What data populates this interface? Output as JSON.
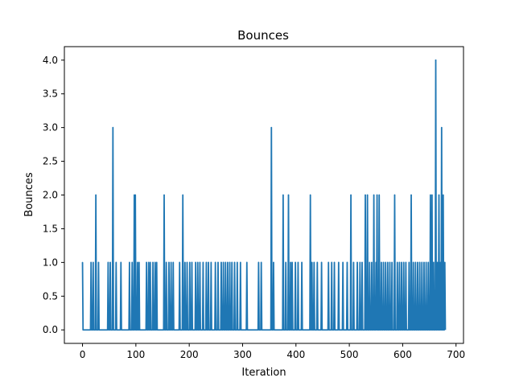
{
  "chart_data": {
    "type": "line",
    "title": "Bounces",
    "xlabel": "Iteration",
    "ylabel": "Bounces",
    "xlim": [
      -34,
      714
    ],
    "ylim": [
      -0.2,
      4.2
    ],
    "xticks": [
      0,
      100,
      200,
      300,
      400,
      500,
      600,
      700
    ],
    "yticks": [
      0.0,
      0.5,
      1.0,
      1.5,
      2.0,
      2.5,
      3.0,
      3.5,
      4.0
    ],
    "xtick_labels": [
      "0",
      "100",
      "200",
      "300",
      "400",
      "500",
      "600",
      "700"
    ],
    "ytick_labels": [
      "0.0",
      "0.5",
      "1.0",
      "1.5",
      "2.0",
      "2.5",
      "3.0",
      "3.5",
      "4.0"
    ],
    "grid": false,
    "line_color": "#1f77b4",
    "x_start": 0,
    "x_end": 680,
    "series": [
      {
        "values": {
          "0": 1,
          "16": 1,
          "20": 1,
          "25": 2,
          "30": 1,
          "48": 1,
          "52": 1,
          "57": 3,
          "63": 1,
          "72": 1,
          "88": 1,
          "93": 1,
          "97": 2,
          "99": 2,
          "103": 1,
          "106": 1,
          "120": 1,
          "124": 1,
          "127": 1,
          "132": 1,
          "136": 1,
          "139": 1,
          "153": 2,
          "157": 1,
          "162": 1,
          "166": 1,
          "170": 1,
          "182": 1,
          "188": 2,
          "192": 1,
          "196": 1,
          "201": 1,
          "205": 1,
          "212": 1,
          "216": 1,
          "220": 1,
          "226": 1,
          "232": 1,
          "236": 1,
          "241": 1,
          "249": 1,
          "254": 1,
          "260": 1,
          "264": 1,
          "268": 1,
          "272": 1,
          "276": 1,
          "280": 1,
          "285": 1,
          "290": 1,
          "296": 1,
          "308": 1,
          "330": 1,
          "335": 1,
          "354": 3,
          "358": 1,
          "376": 2,
          "381": 1,
          "386": 2,
          "390": 1,
          "393": 1,
          "399": 1,
          "404": 1,
          "411": 1,
          "427": 2,
          "430": 1,
          "434": 1,
          "440": 1,
          "448": 1,
          "461": 1,
          "467": 1,
          "472": 1,
          "480": 1,
          "488": 1,
          "496": 1,
          "503": 2,
          "508": 1,
          "515": 1,
          "520": 1,
          "524": 1,
          "530": 2,
          "534": 2,
          "538": 1,
          "542": 1,
          "546": 2,
          "550": 1,
          "552": 2,
          "556": 2,
          "560": 1,
          "564": 1,
          "568": 1,
          "572": 1,
          "576": 1,
          "580": 1,
          "585": 2,
          "590": 1,
          "594": 1,
          "598": 1,
          "602": 1,
          "606": 1,
          "612": 1,
          "616": 2,
          "620": 1,
          "624": 1,
          "628": 1,
          "632": 1,
          "636": 1,
          "640": 1,
          "644": 1,
          "648": 1,
          "652": 2,
          "655": 2,
          "658": 1,
          "662": 4,
          "665": 1,
          "668": 2,
          "671": 1,
          "673": 3,
          "676": 2,
          "679": 1
        }
      }
    ]
  }
}
